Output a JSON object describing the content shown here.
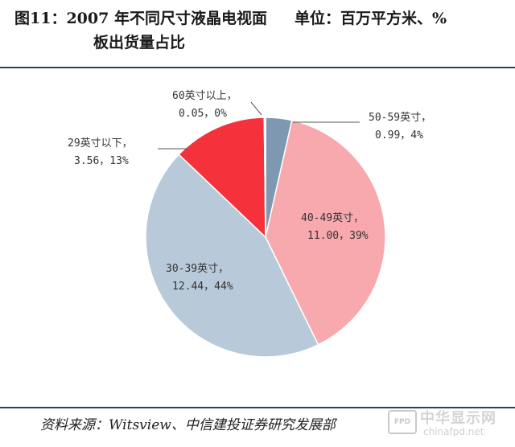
{
  "title_prefix": "图11：",
  "title_main": "2007 年不同尺寸液晶电视面",
  "title_unit": "单位：百万平方米、%",
  "title_line2": "板出货量占比",
  "source": "资料来源：Witsview、中信建投证券研究发展部",
  "watermark": {
    "badge": "FPD",
    "name": "中华显示网",
    "url": "chinafpd.net"
  },
  "chart_data": {
    "type": "pie",
    "title": "2007 年不同尺寸液晶电视面板出货量占比",
    "unit": "百万平方米、%",
    "slices": [
      {
        "label": "50-59英寸",
        "value": 0.99,
        "percent": "4%",
        "color": "#7f98b1",
        "value_text": "0.99，4%"
      },
      {
        "label": "40-49英寸",
        "value": 11.0,
        "percent": "39%",
        "color": "#f7a9ae",
        "value_text": "11.00，39%"
      },
      {
        "label": "30-39英寸",
        "value": 12.44,
        "percent": "44%",
        "color": "#b8cada",
        "value_text": "12.44，44%"
      },
      {
        "label": "29英寸以下",
        "value": 3.56,
        "percent": "13%",
        "color": "#f5323b",
        "value_text": "3.56，13%"
      },
      {
        "label": "60英寸以上",
        "value": 0.05,
        "percent": "0%",
        "color": "#fbfcfd",
        "value_text": "0.05，0%"
      }
    ]
  }
}
